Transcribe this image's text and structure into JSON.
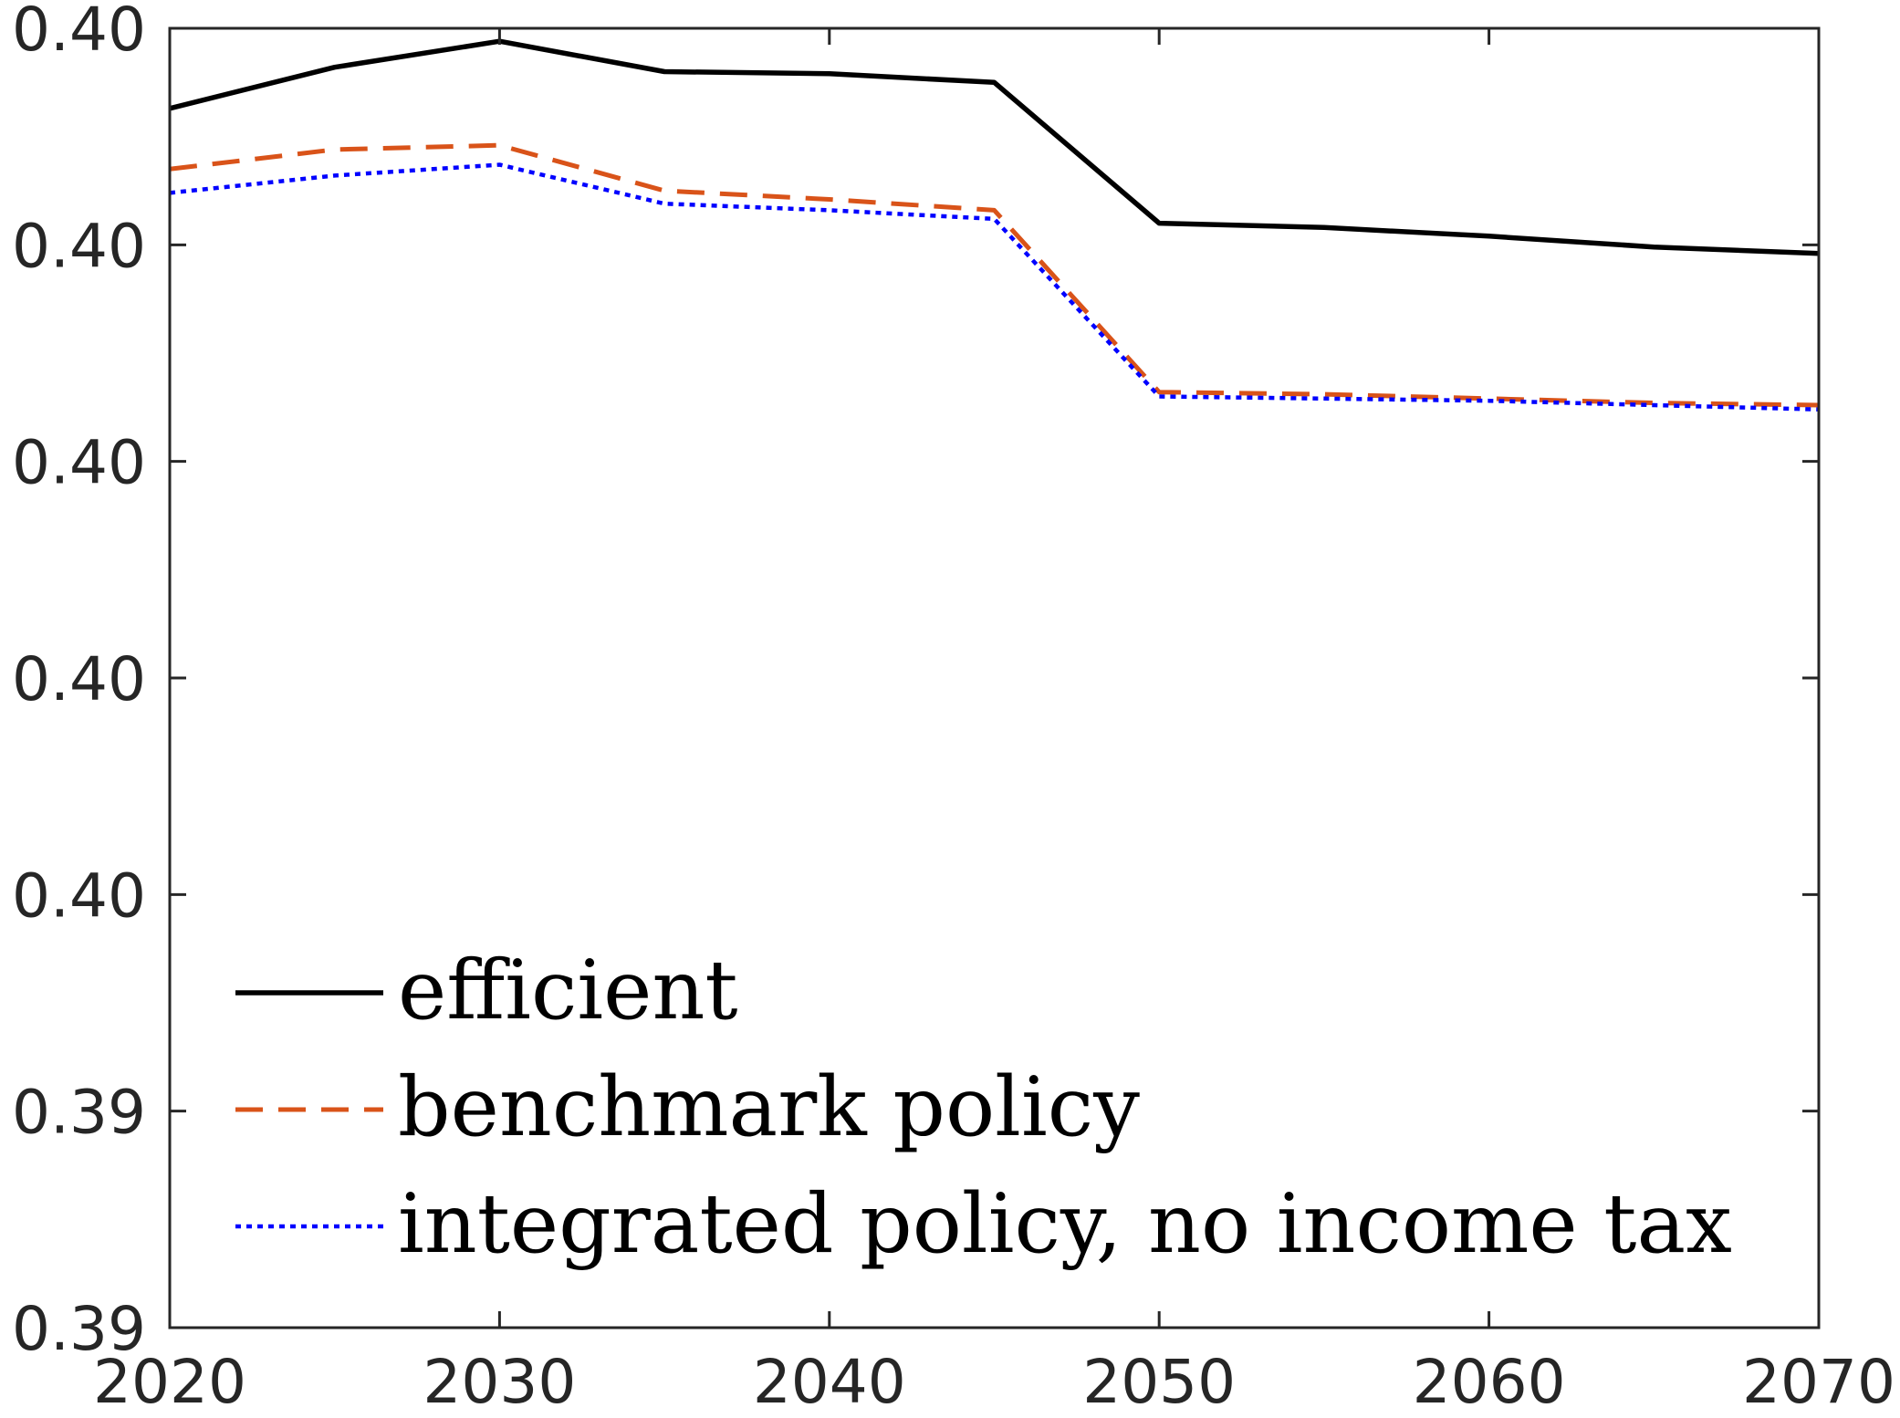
{
  "chart_data": {
    "type": "line",
    "title": "",
    "xlabel": "",
    "ylabel": "",
    "x": [
      2020,
      2025,
      2030,
      2035,
      2040,
      2045,
      2050,
      2055,
      2060,
      2065,
      2070
    ],
    "xlim": [
      2020,
      2070
    ],
    "ylim": [
      0.394,
      0.4
    ],
    "x_ticks": [
      2020,
      2030,
      2040,
      2050,
      2060,
      2070
    ],
    "x_tick_labels": [
      "2020",
      "2030",
      "2040",
      "2050",
      "2060",
      "2070"
    ],
    "y_ticks": [
      0.394,
      0.395,
      0.396,
      0.397,
      0.398,
      0.399,
      0.4
    ],
    "y_tick_labels": [
      "0.39",
      "0.39",
      "0.40",
      "0.40",
      "0.40",
      "0.40",
      "0.40"
    ],
    "grid": false,
    "legend_position": "bottom-left",
    "series": [
      {
        "name": "efficient",
        "color": "#000000",
        "line_style": "solid",
        "values": [
          0.39963,
          0.39982,
          0.39994,
          0.3998,
          0.39979,
          0.39975,
          0.3991,
          0.39908,
          0.39904,
          0.39899,
          0.39896
        ]
      },
      {
        "name": "benchmark policy",
        "color": "#D95319",
        "line_style": "dashed",
        "values": [
          0.39935,
          0.39944,
          0.39946,
          0.39925,
          0.39921,
          0.39916,
          0.39832,
          0.39831,
          0.39829,
          0.39827,
          0.39826
        ]
      },
      {
        "name": "integrated policy, no income tax",
        "color": "#0000FF",
        "line_style": "dotted",
        "values": [
          0.39924,
          0.39932,
          0.39937,
          0.39919,
          0.39916,
          0.39912,
          0.3983,
          0.39829,
          0.39828,
          0.39826,
          0.39824
        ]
      }
    ]
  }
}
